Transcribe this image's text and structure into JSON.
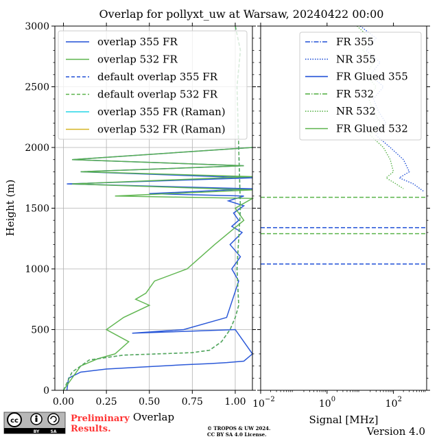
{
  "figure": {
    "title": "Overlap for pollyxt_uw at Warsaw, 20240422 00:00",
    "version": "Version 4.0",
    "copyright_line1": "© TROPOS & UW 2024.",
    "copyright_line2": "CC BY SA 4.0 License.",
    "preliminary_line1": "Preliminary",
    "preliminary_line2": "Results.",
    "license_badge": {
      "cc": "cc",
      "by": "BY",
      "sa": "SA"
    }
  },
  "chart_data": [
    {
      "type": "line",
      "panel": "overlap",
      "xlabel": "Overlap",
      "ylabel": "Height (m)",
      "xlim": [
        -0.05,
        1.1
      ],
      "ylim": [
        0,
        3000
      ],
      "x_ticks": [
        0.0,
        0.25,
        0.5,
        0.75,
        1.0
      ],
      "x_tick_labels": [
        "0.00",
        "0.25",
        "0.50",
        "0.75",
        "1.00"
      ],
      "y_ticks": [
        0,
        500,
        1000,
        1500,
        2000,
        2500,
        3000
      ],
      "y_tick_labels": [
        "0",
        "500",
        "1000",
        "1500",
        "2000",
        "2500",
        "3000"
      ],
      "grid": true,
      "legend_position": "top",
      "series": [
        {
          "name": "overlap 355 FR",
          "color": "#1f4fd6",
          "style": "solid",
          "x": [
            0.02,
            0.03,
            0.1,
            0.25,
            0.5,
            0.7,
            0.85,
            0.95,
            1.05,
            1.1,
            1.0,
            0.4,
            0.7,
            0.95,
            1.02,
            0.98,
            1.03,
            0.97,
            1.04,
            0.98,
            1.02,
            0.99,
            1.05,
            0.96,
            1.05,
            0.5,
            1.1,
            0.02,
            1.1,
            0.1,
            1.05,
            0.05,
            1.1
          ],
          "y": [
            0,
            100,
            150,
            175,
            195,
            210,
            220,
            228,
            240,
            300,
            500,
            470,
            500,
            600,
            900,
            1000,
            1100,
            1200,
            1300,
            1350,
            1400,
            1460,
            1520,
            1560,
            1600,
            1620,
            1660,
            1700,
            1750,
            1800,
            1850,
            1900,
            2000
          ]
        },
        {
          "name": "overlap 532 FR",
          "color": "#5ab34a",
          "style": "solid",
          "x": [
            0.0,
            0.05,
            0.1,
            0.2,
            0.3,
            0.38,
            0.25,
            0.35,
            0.5,
            0.42,
            0.48,
            0.53,
            0.72,
            0.88,
            1.05,
            1.0,
            1.1,
            0.3,
            1.1,
            0.05,
            1.1,
            0.1,
            1.05,
            0.05,
            1.1
          ],
          "y": [
            0,
            100,
            200,
            260,
            300,
            400,
            500,
            600,
            700,
            750,
            800,
            900,
            1000,
            1200,
            1400,
            1500,
            1580,
            1600,
            1650,
            1700,
            1760,
            1800,
            1850,
            1900,
            2000
          ]
        },
        {
          "name": "default overlap 355 FR",
          "color": "#1f4fd6",
          "style": "dashed",
          "x": [
            0.0,
            0.05,
            0.15,
            0.35,
            0.55,
            0.75,
            0.85,
            0.92,
            0.97,
            1.0,
            1.02,
            1.01,
            1.03,
            1.02,
            1.01,
            1.03,
            1.0
          ],
          "y": [
            0,
            150,
            250,
            290,
            300,
            310,
            330,
            400,
            500,
            600,
            700,
            1000,
            1500,
            2000,
            2500,
            2800,
            3000
          ]
        },
        {
          "name": "default overlap 532 FR",
          "color": "#5ab34a",
          "style": "dashed",
          "x": [
            0.0,
            0.05,
            0.15,
            0.35,
            0.55,
            0.75,
            0.85,
            0.92,
            0.97,
            1.0,
            1.02,
            1.01,
            1.03,
            1.02,
            1.01,
            1.03,
            1.0
          ],
          "y": [
            0,
            150,
            250,
            290,
            300,
            310,
            330,
            400,
            500,
            600,
            700,
            1000,
            1500,
            2000,
            2500,
            2800,
            3000
          ]
        },
        {
          "name": "overlap 355 FR (Raman)",
          "color": "#22d6e6",
          "style": "solid",
          "x": [],
          "y": []
        },
        {
          "name": "overlap 532 FR (Raman)",
          "color": "#d6b422",
          "style": "solid",
          "x": [],
          "y": []
        }
      ]
    },
    {
      "type": "line",
      "panel": "signal",
      "xlabel": "Signal [MHz]",
      "ylabel": "",
      "xscale": "log",
      "xlim": [
        0.01,
        1000
      ],
      "ylim": [
        0,
        3000
      ],
      "x_ticks": [
        0.01,
        1,
        100
      ],
      "x_tick_labels": [
        "10",
        "10",
        "10"
      ],
      "x_tick_exponents": [
        "−2",
        "0",
        "2"
      ],
      "grid": false,
      "legend_position": "top-right",
      "series": [
        {
          "name": "FR 355",
          "color": "#1f4fd6",
          "style": "dashdot",
          "x": [],
          "y": []
        },
        {
          "name": "NR 355",
          "color": "#1f4fd6",
          "style": "dotted",
          "x": [
            10,
            30,
            15,
            40,
            20,
            50,
            25,
            35,
            60,
            30,
            80,
            200,
            300,
            150,
            400,
            800
          ],
          "y": [
            3000,
            2900,
            2800,
            2700,
            2600,
            2500,
            2400,
            2300,
            2200,
            2100,
            2000,
            1900,
            1800,
            1750,
            1700,
            1640
          ]
        },
        {
          "name": "FR Glued 355",
          "color": "#1f4fd6",
          "style": "solid",
          "x": [],
          "y": []
        },
        {
          "name": "FR 532",
          "color": "#5ab34a",
          "style": "dashdot",
          "x": [],
          "y": []
        },
        {
          "name": "NR 532",
          "color": "#5ab34a",
          "style": "dotted",
          "x": [
            8,
            20,
            12,
            25,
            15,
            30,
            18,
            25,
            40,
            20,
            50,
            80,
            100,
            60,
            120,
            200
          ],
          "y": [
            3000,
            2900,
            2800,
            2700,
            2600,
            2500,
            2400,
            2300,
            2200,
            2100,
            2000,
            1900,
            1800,
            1750,
            1700,
            1660
          ]
        },
        {
          "name": "FR Glued 532",
          "color": "#5ab34a",
          "style": "solid",
          "x": [],
          "y": []
        }
      ],
      "reference_lines": [
        {
          "y": 1040,
          "color": "#1f4fd6",
          "style": "dashed"
        },
        {
          "y": 1340,
          "color": "#1f4fd6",
          "style": "dashed"
        },
        {
          "y": 1290,
          "color": "#5ab34a",
          "style": "dashed"
        },
        {
          "y": 1590,
          "color": "#5ab34a",
          "style": "dashed"
        }
      ]
    }
  ]
}
